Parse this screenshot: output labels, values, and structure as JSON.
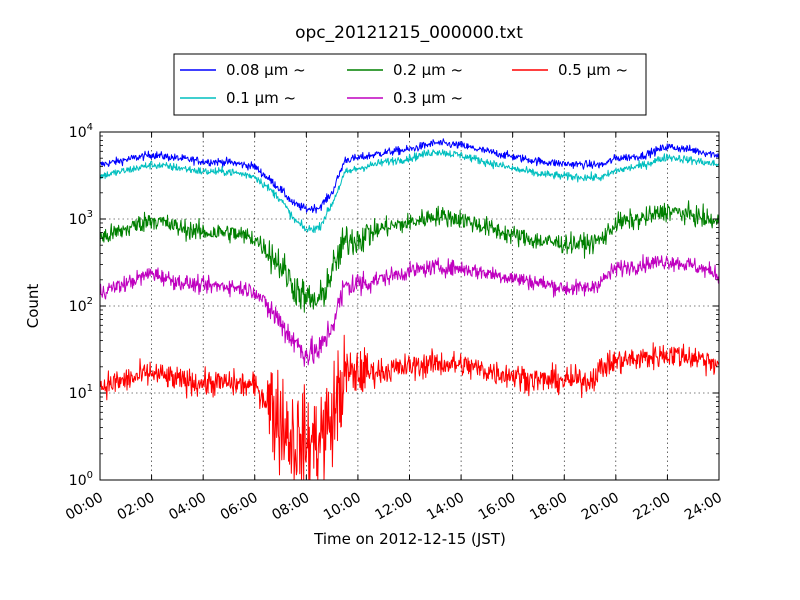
{
  "chart_data": {
    "type": "line",
    "title": "opc_20121215_000000.txt",
    "xlabel": "Time on 2012-12-15 (JST)",
    "ylabel": "Count",
    "x_unit": "hours (JST)",
    "xlim": [
      0,
      24
    ],
    "ylim": [
      1,
      10000
    ],
    "y_scale": "log",
    "grid": true,
    "legend_location": "top-center",
    "x_ticks": [
      {
        "value": 0,
        "label": "00:00"
      },
      {
        "value": 2,
        "label": "02:00"
      },
      {
        "value": 4,
        "label": "04:00"
      },
      {
        "value": 6,
        "label": "06:00"
      },
      {
        "value": 8,
        "label": "08:00"
      },
      {
        "value": 10,
        "label": "10:00"
      },
      {
        "value": 12,
        "label": "12:00"
      },
      {
        "value": 14,
        "label": "14:00"
      },
      {
        "value": 16,
        "label": "16:00"
      },
      {
        "value": 18,
        "label": "18:00"
      },
      {
        "value": 20,
        "label": "20:00"
      },
      {
        "value": 22,
        "label": "22:00"
      },
      {
        "value": 24,
        "label": "24:00"
      }
    ],
    "y_ticks": [
      {
        "value": 1,
        "base": "10",
        "exp": "0"
      },
      {
        "value": 10,
        "base": "10",
        "exp": "1"
      },
      {
        "value": 100,
        "base": "10",
        "exp": "2"
      },
      {
        "value": 1000,
        "base": "10",
        "exp": "3"
      },
      {
        "value": 10000,
        "base": "10",
        "exp": "4"
      }
    ],
    "x": [
      0,
      1,
      2,
      3,
      4,
      5,
      6,
      7,
      7.5,
      8,
      8.5,
      9,
      9.5,
      10,
      11,
      12,
      13,
      14,
      15,
      16,
      17,
      18,
      19,
      19.5,
      20,
      21,
      22,
      23,
      24
    ],
    "series": [
      {
        "name": "0.08 μm ~",
        "color": "#0000ff",
        "noise": 0.05,
        "values": [
          4200,
          4800,
          5500,
          5000,
          4600,
          4500,
          4000,
          2200,
          1500,
          1300,
          1350,
          2000,
          4800,
          5000,
          5800,
          6300,
          7500,
          7000,
          6000,
          5200,
          4600,
          4300,
          4200,
          4200,
          5000,
          5300,
          6800,
          6200,
          5400
        ]
      },
      {
        "name": "0.1 μm ~",
        "color": "#00bfbf",
        "noise": 0.05,
        "values": [
          3100,
          3600,
          4200,
          3900,
          3500,
          3500,
          3100,
          1700,
          1000,
          750,
          800,
          1500,
          3400,
          3800,
          4500,
          5000,
          6000,
          5400,
          4500,
          3800,
          3300,
          3100,
          3000,
          3000,
          3600,
          4100,
          5200,
          4700,
          4200
        ]
      },
      {
        "name": "0.2 μm ~",
        "color": "#008000",
        "noise": 0.12,
        "values": [
          600,
          760,
          1000,
          800,
          700,
          700,
          600,
          300,
          170,
          120,
          110,
          250,
          560,
          600,
          800,
          900,
          1100,
          1000,
          800,
          650,
          560,
          520,
          520,
          600,
          900,
          1000,
          1250,
          1100,
          900
        ]
      },
      {
        "name": "0.3 μm ~",
        "color": "#bf00bf",
        "noise": 0.1,
        "values": [
          145,
          180,
          240,
          190,
          170,
          170,
          150,
          65,
          40,
          28,
          30,
          60,
          170,
          180,
          210,
          250,
          280,
          270,
          240,
          210,
          185,
          160,
          160,
          200,
          270,
          300,
          330,
          290,
          230
        ]
      },
      {
        "name": "0.5 μm ~",
        "color": "#ff0000",
        "noise": 0.16,
        "values": [
          12,
          14,
          17,
          14,
          13,
          13,
          12,
          5,
          3,
          2.5,
          3,
          5,
          16,
          17,
          18,
          20,
          22,
          21,
          18,
          16,
          14,
          14,
          14,
          20,
          23,
          25,
          28,
          26,
          22
        ]
      }
    ]
  }
}
